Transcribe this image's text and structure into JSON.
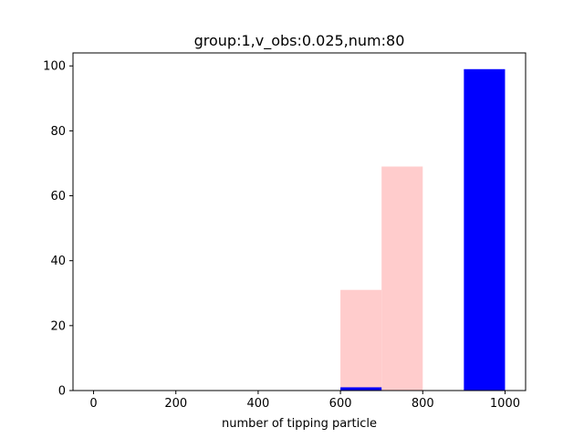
{
  "chart_data": {
    "type": "bar",
    "title": "group:1,v_obs:0.025,num:80",
    "xlabel": "number of tipping particle",
    "ylabel": "",
    "xlim": [
      -50,
      1050
    ],
    "ylim": [
      0,
      104
    ],
    "xticks": [
      0,
      200,
      400,
      600,
      800,
      1000
    ],
    "yticks": [
      0,
      20,
      40,
      60,
      80,
      100
    ],
    "grid": false,
    "series": [
      {
        "color": "#ffcccc",
        "bins": [
          {
            "x0": 600,
            "x1": 700,
            "value": 31
          },
          {
            "x0": 700,
            "x1": 800,
            "value": 69
          }
        ]
      },
      {
        "color": "#0000ff",
        "bins": [
          {
            "x0": 600,
            "x1": 700,
            "value": 1
          },
          {
            "x0": 900,
            "x1": 1000,
            "value": 99
          }
        ]
      }
    ]
  }
}
